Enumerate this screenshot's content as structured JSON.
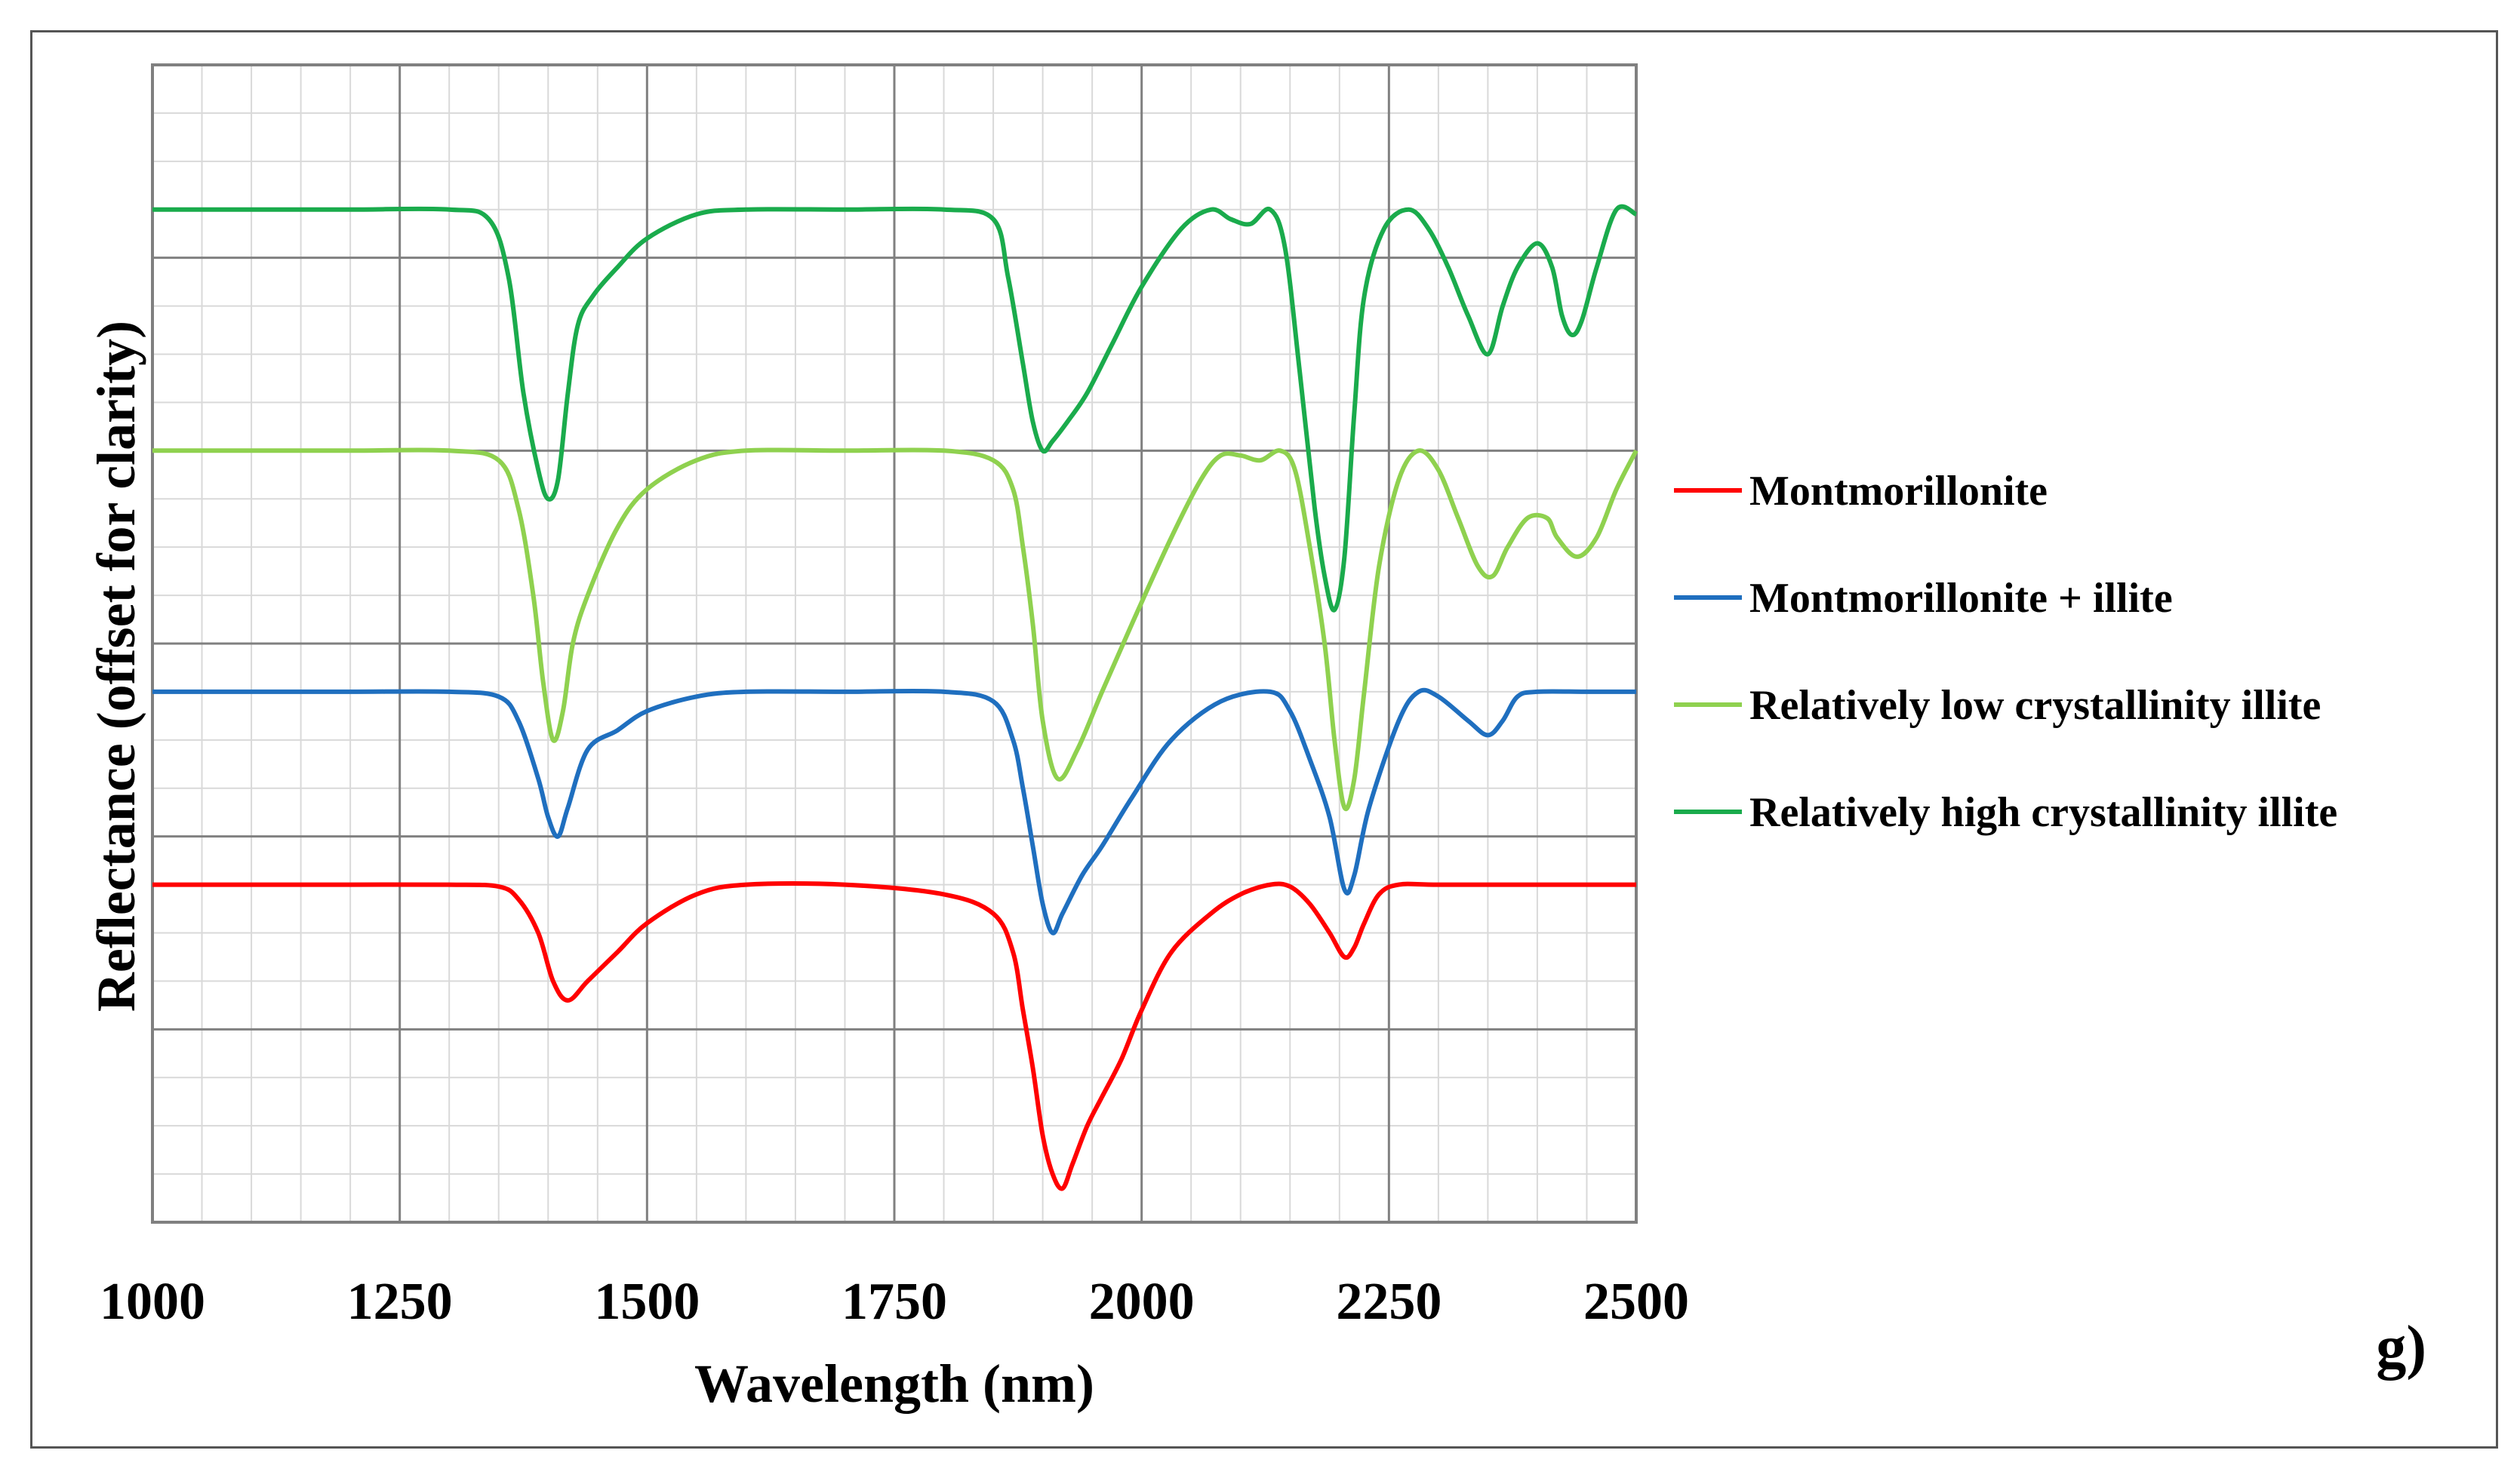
{
  "chart_data": {
    "type": "line",
    "title": "",
    "panel_label": "g)",
    "xlabel": "Wavelength (nm)",
    "ylabel": "Reflectance (offset for clarity)",
    "xlim": [
      1000,
      2500
    ],
    "ylim": [
      0,
      12
    ],
    "x_ticks": [
      "1000",
      "1250",
      "1500",
      "1750",
      "2000",
      "2250",
      "2500"
    ],
    "grid": true,
    "legend_position": "right",
    "series": [
      {
        "name": "Montmorillonite",
        "color": "#ff0000",
        "x": [
          1000,
          1100,
          1200,
          1300,
          1350,
          1370,
          1390,
          1405,
          1420,
          1440,
          1470,
          1500,
          1550,
          1600,
          1700,
          1800,
          1850,
          1870,
          1880,
          1890,
          1900,
          1910,
          1920,
          1930,
          1945,
          1960,
          1980,
          2000,
          2030,
          2070,
          2100,
          2130,
          2150,
          2170,
          2190,
          2205,
          2215,
          2225,
          2240,
          2260,
          2300,
          2400,
          2500
        ],
        "y": [
          3.5,
          3.5,
          3.5,
          3.5,
          3.48,
          3.35,
          3.0,
          2.5,
          2.3,
          2.5,
          2.8,
          3.1,
          3.4,
          3.5,
          3.5,
          3.4,
          3.2,
          2.8,
          2.2,
          1.6,
          0.9,
          0.5,
          0.35,
          0.6,
          1.0,
          1.3,
          1.7,
          2.2,
          2.8,
          3.2,
          3.4,
          3.5,
          3.48,
          3.3,
          3.0,
          2.75,
          2.85,
          3.1,
          3.4,
          3.5,
          3.5,
          3.5,
          3.5
        ]
      },
      {
        "name": "Montmorillonite + illite",
        "color": "#1f6fbf",
        "x": [
          1000,
          1100,
          1200,
          1300,
          1350,
          1370,
          1390,
          1400,
          1410,
          1420,
          1440,
          1470,
          1500,
          1550,
          1600,
          1700,
          1800,
          1850,
          1870,
          1880,
          1890,
          1900,
          1910,
          1920,
          1940,
          1960,
          1990,
          2030,
          2080,
          2130,
          2150,
          2170,
          2190,
          2205,
          2215,
          2230,
          2260,
          2280,
          2300,
          2330,
          2350,
          2365,
          2380,
          2400,
          2450,
          2500
        ],
        "y": [
          5.5,
          5.5,
          5.5,
          5.5,
          5.45,
          5.2,
          4.6,
          4.2,
          4.0,
          4.3,
          4.9,
          5.1,
          5.3,
          5.45,
          5.5,
          5.5,
          5.5,
          5.4,
          5.0,
          4.5,
          3.9,
          3.3,
          3.0,
          3.2,
          3.6,
          3.9,
          4.4,
          5.0,
          5.4,
          5.5,
          5.3,
          4.8,
          4.2,
          3.45,
          3.6,
          4.3,
          5.2,
          5.5,
          5.45,
          5.2,
          5.05,
          5.2,
          5.45,
          5.5,
          5.5,
          5.5
        ]
      },
      {
        "name": "Relatively low crystallinity illite",
        "color": "#8fd14f",
        "x": [
          1000,
          1100,
          1200,
          1300,
          1350,
          1370,
          1385,
          1395,
          1405,
          1415,
          1425,
          1440,
          1470,
          1500,
          1550,
          1600,
          1700,
          1800,
          1850,
          1870,
          1880,
          1890,
          1900,
          1915,
          1935,
          1960,
          1990,
          2030,
          2060,
          2080,
          2100,
          2120,
          2140,
          2155,
          2170,
          2185,
          2195,
          2205,
          2215,
          2225,
          2240,
          2260,
          2280,
          2300,
          2320,
          2340,
          2355,
          2370,
          2390,
          2410,
          2420,
          2440,
          2460,
          2480,
          2500
        ],
        "y": [
          8.0,
          8.0,
          8.0,
          8.0,
          7.9,
          7.4,
          6.5,
          5.6,
          5.0,
          5.3,
          6.0,
          6.5,
          7.2,
          7.6,
          7.9,
          8.0,
          8.0,
          8.0,
          7.9,
          7.6,
          7.0,
          6.2,
          5.2,
          4.6,
          4.9,
          5.5,
          6.2,
          7.1,
          7.7,
          7.95,
          7.95,
          7.9,
          8.0,
          7.8,
          7.0,
          6.0,
          5.0,
          4.3,
          4.6,
          5.5,
          6.8,
          7.7,
          8.0,
          7.8,
          7.3,
          6.8,
          6.7,
          7.0,
          7.3,
          7.3,
          7.1,
          6.9,
          7.1,
          7.6,
          8.0
        ]
      },
      {
        "name": "Relatively high crystallinity illite",
        "color": "#1aab4c",
        "x": [
          1000,
          1100,
          1200,
          1300,
          1340,
          1360,
          1375,
          1390,
          1400,
          1410,
          1420,
          1430,
          1445,
          1470,
          1500,
          1550,
          1600,
          1700,
          1800,
          1850,
          1865,
          1880,
          1890,
          1900,
          1910,
          1925,
          1945,
          1970,
          2000,
          2040,
          2070,
          2090,
          2110,
          2130,
          2145,
          2160,
          2175,
          2185,
          2195,
          2205,
          2215,
          2225,
          2245,
          2270,
          2290,
          2310,
          2330,
          2350,
          2365,
          2380,
          2400,
          2415,
          2425,
          2435,
          2445,
          2460,
          2480,
          2500
        ],
        "y": [
          10.5,
          10.5,
          10.5,
          10.5,
          10.4,
          9.8,
          8.6,
          7.8,
          7.5,
          7.7,
          8.6,
          9.3,
          9.6,
          9.9,
          10.2,
          10.45,
          10.5,
          10.5,
          10.5,
          10.4,
          9.8,
          8.9,
          8.3,
          8.0,
          8.1,
          8.3,
          8.6,
          9.1,
          9.7,
          10.3,
          10.5,
          10.4,
          10.35,
          10.5,
          10.1,
          8.8,
          7.4,
          6.7,
          6.35,
          6.9,
          8.4,
          9.6,
          10.3,
          10.5,
          10.3,
          9.9,
          9.4,
          9.0,
          9.5,
          9.9,
          10.15,
          9.9,
          9.4,
          9.2,
          9.35,
          9.9,
          10.5,
          10.45
        ]
      }
    ]
  }
}
